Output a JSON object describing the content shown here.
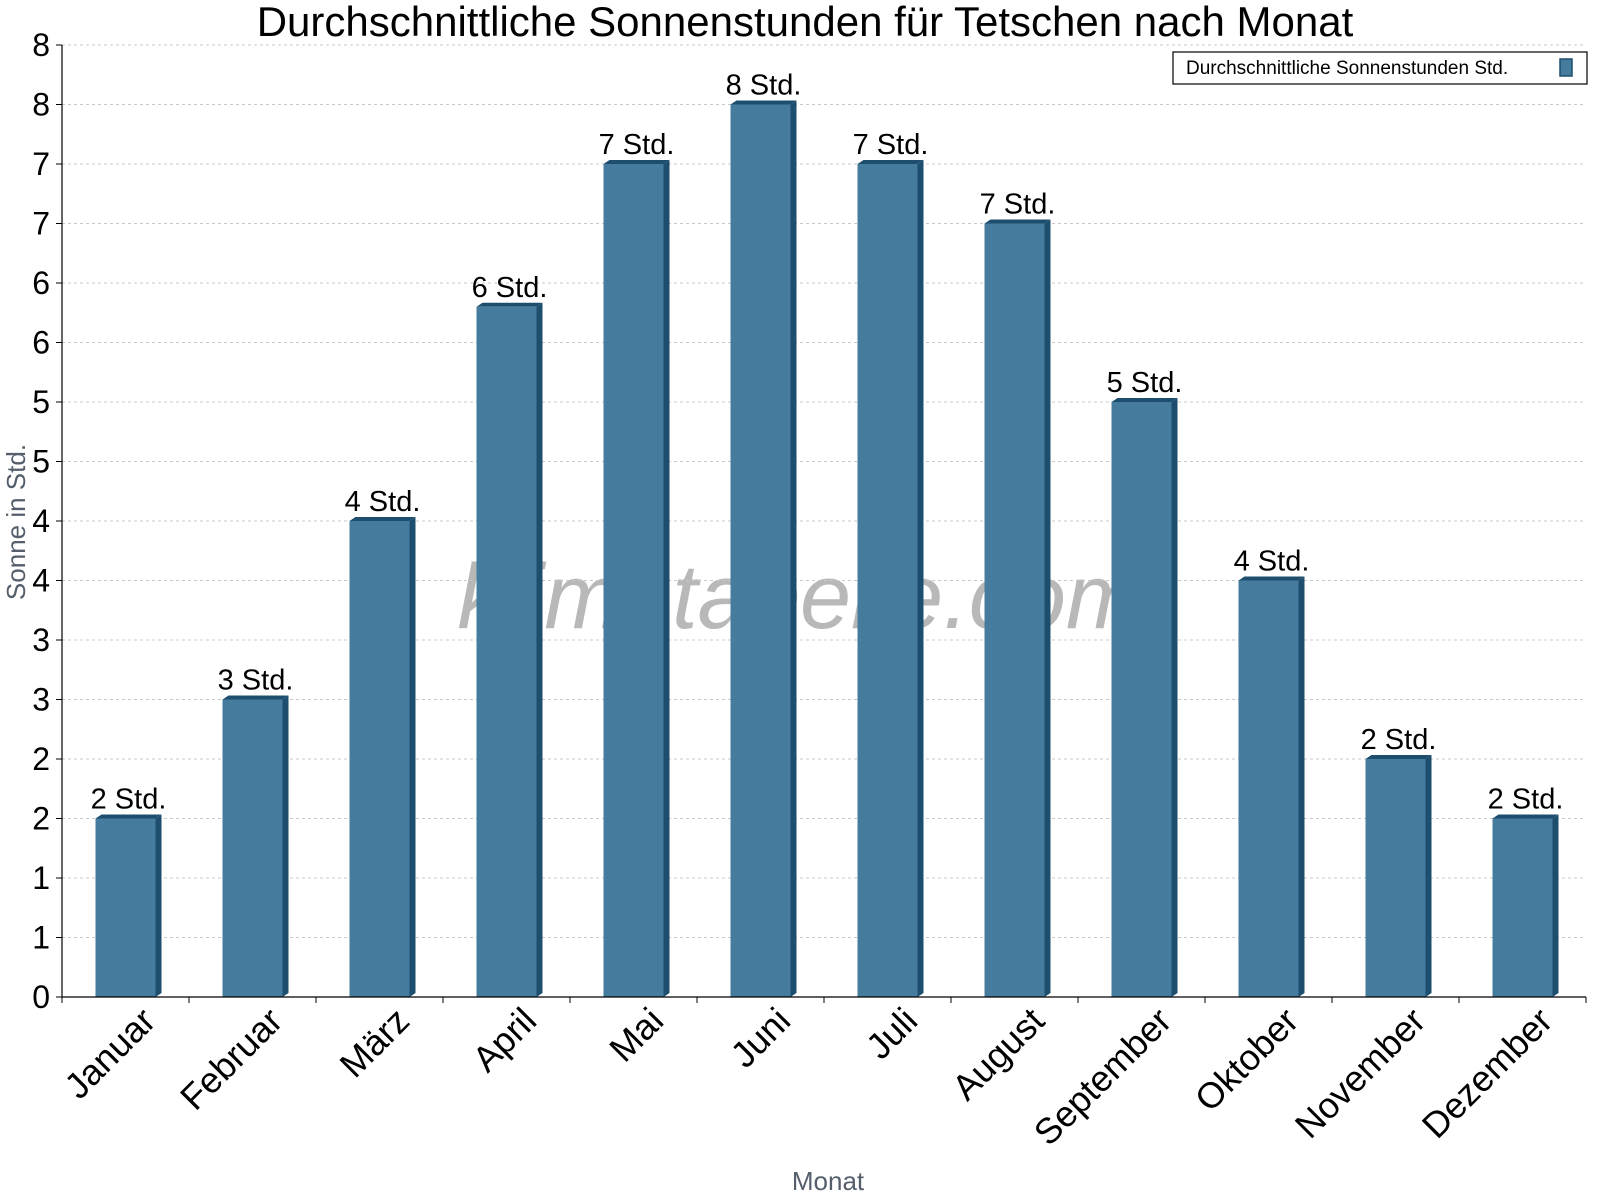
{
  "chart_data": {
    "type": "bar",
    "title": "Durchschnittliche Sonnenstunden für Tetschen nach Monat",
    "xlabel": "Monat",
    "ylabel": "Sonne in Std.",
    "categories": [
      "Januar",
      "Februar",
      "März",
      "April",
      "Mai",
      "Juni",
      "Juli",
      "August",
      "September",
      "Oktober",
      "November",
      "Dezember"
    ],
    "series": [
      {
        "name": "Durchschnittliche Sonnenstunden Std.",
        "values": [
          1.5,
          2.5,
          4.0,
          5.8,
          7.0,
          7.5,
          7.0,
          6.5,
          5.0,
          3.5,
          2.0,
          1.5
        ],
        "labels": [
          "2 Std.",
          "3 Std.",
          "4 Std.",
          "6 Std.",
          "7 Std.",
          "8 Std.",
          "7 Std.",
          "7 Std.",
          "5 Std.",
          "4 Std.",
          "2 Std.",
          "2 Std."
        ]
      }
    ],
    "ylim": [
      0,
      8
    ],
    "yticks": [
      0,
      0.5,
      1,
      1.5,
      2,
      2.5,
      3,
      3.5,
      4,
      4.5,
      5,
      5.5,
      6,
      6.5,
      7,
      7.5,
      8
    ],
    "ytick_labels": [
      "0",
      "1",
      "1",
      "2",
      "2",
      "3",
      "3",
      "4",
      "4",
      "5",
      "5",
      "6",
      "6",
      "7",
      "7",
      "8",
      "8"
    ],
    "grid": true,
    "legend": "top-right",
    "watermark": "klimatabelle.com",
    "colors": {
      "bar": "#457b9d",
      "bar_dark": "#1d4e6e",
      "grid": "#c8c8c8",
      "axis_title": "#555f6b"
    }
  }
}
